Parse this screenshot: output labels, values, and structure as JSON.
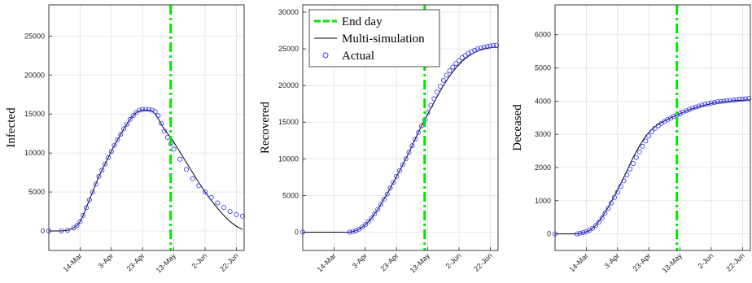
{
  "colors": {
    "end_day": "#00e600",
    "simulation": "#000000",
    "actual": "#3333ff",
    "grid": "#e0e0e0"
  },
  "chart_data": [
    {
      "type": "line",
      "ylabel": "Infected",
      "ylim": [
        -2500,
        29000
      ],
      "yticks": [
        0,
        5000,
        10000,
        15000,
        20000,
        25000
      ],
      "x_range": [
        0,
        125
      ],
      "x_ticks": [
        {
          "x": 20,
          "label": "14-Mar"
        },
        {
          "x": 40,
          "label": "3-Apr"
        },
        {
          "x": 60,
          "label": "23-Apr"
        },
        {
          "x": 80,
          "label": "13-May"
        },
        {
          "x": 100,
          "label": "2-Jun"
        },
        {
          "x": 120,
          "label": "22-Jun"
        }
      ],
      "end_day": 78,
      "grid": true,
      "legend": null,
      "simulation": {
        "name": "Multi-simulation",
        "x": [
          0,
          8,
          12,
          16,
          18,
          20,
          22,
          24,
          26,
          28,
          30,
          32,
          34,
          36,
          38,
          40,
          42,
          44,
          46,
          48,
          50,
          52,
          54,
          56,
          58,
          60,
          62,
          64,
          66,
          68,
          70,
          72,
          74,
          76,
          78,
          80,
          84,
          88,
          92,
          96,
          100,
          104,
          108,
          112,
          116,
          120,
          124
        ],
        "y": [
          0,
          0,
          100,
          400,
          700,
          1200,
          2000,
          3000,
          4000,
          5000,
          6000,
          7000,
          7800,
          8600,
          9400,
          10200,
          11000,
          11700,
          12400,
          13100,
          13700,
          14300,
          14800,
          15200,
          15400,
          15500,
          15500,
          15500,
          15400,
          15000,
          14400,
          13700,
          13000,
          12500,
          12000,
          11400,
          10100,
          8800,
          7500,
          6200,
          5000,
          3900,
          2900,
          2000,
          1200,
          600,
          200
        ]
      },
      "actual": {
        "name": "Actual",
        "x": [
          0,
          8,
          12,
          16,
          18,
          20,
          22,
          24,
          26,
          28,
          30,
          32,
          34,
          36,
          38,
          40,
          42,
          44,
          46,
          48,
          50,
          52,
          54,
          56,
          58,
          60,
          62,
          64,
          66,
          68,
          70,
          72,
          74,
          76,
          78,
          80,
          84,
          88,
          92,
          96,
          100,
          104,
          108,
          112,
          116,
          120,
          124
        ],
        "y": [
          0,
          0,
          100,
          400,
          700,
          1200,
          2000,
          3000,
          4000,
          5000,
          6000,
          7000,
          7800,
          8600,
          9400,
          10200,
          11000,
          11700,
          12400,
          13100,
          13700,
          14300,
          14800,
          15200,
          15500,
          15600,
          15600,
          15600,
          15500,
          15300,
          14800,
          13800,
          12800,
          12000,
          11200,
          10500,
          9200,
          7900,
          6700,
          5800,
          5000,
          4300,
          3600,
          3000,
          2500,
          2100,
          1900
        ]
      }
    },
    {
      "type": "line",
      "ylabel": "Recovered",
      "ylim": [
        -2500,
        31000
      ],
      "yticks": [
        0,
        5000,
        10000,
        15000,
        20000,
        25000,
        30000
      ],
      "x_range": [
        0,
        125
      ],
      "x_ticks": [
        {
          "x": 20,
          "label": "14-Mar"
        },
        {
          "x": 40,
          "label": "3-Apr"
        },
        {
          "x": 60,
          "label": "23-Apr"
        },
        {
          "x": 80,
          "label": "13-May"
        },
        {
          "x": 100,
          "label": "2-Jun"
        },
        {
          "x": 120,
          "label": "22-Jun"
        }
      ],
      "end_day": 78,
      "grid": true,
      "legend": {
        "placement": "top-left",
        "entries": [
          {
            "label": "End day",
            "style": "dash"
          },
          {
            "label": "Multi-simulation",
            "style": "line"
          },
          {
            "label": "Actual",
            "style": "marker"
          }
        ]
      },
      "simulation": {
        "name": "Multi-simulation",
        "x": [
          0,
          30,
          32,
          34,
          36,
          38,
          40,
          42,
          44,
          46,
          48,
          50,
          52,
          54,
          56,
          58,
          60,
          62,
          64,
          66,
          68,
          70,
          72,
          74,
          76,
          78,
          82,
          86,
          90,
          94,
          98,
          102,
          106,
          110,
          114,
          118,
          122,
          125
        ],
        "y": [
          0,
          0,
          100,
          200,
          400,
          700,
          1000,
          1400,
          1900,
          2500,
          3100,
          3800,
          4500,
          5200,
          6000,
          6800,
          7600,
          8400,
          9200,
          10000,
          10900,
          11800,
          12700,
          13600,
          14500,
          15300,
          16900,
          18500,
          20000,
          21300,
          22400,
          23300,
          24000,
          24500,
          24900,
          25100,
          25200,
          25200
        ]
      },
      "actual": {
        "name": "Actual",
        "x": [
          0,
          30,
          32,
          34,
          36,
          38,
          40,
          42,
          44,
          46,
          48,
          50,
          52,
          54,
          56,
          58,
          60,
          62,
          64,
          66,
          68,
          70,
          72,
          74,
          76,
          78,
          80,
          82,
          84,
          86,
          88,
          90,
          92,
          94,
          96,
          98,
          100,
          102,
          104,
          106,
          108,
          110,
          112,
          114,
          116,
          118,
          120,
          122,
          124
        ],
        "y": [
          0,
          0,
          100,
          200,
          400,
          700,
          1000,
          1400,
          1900,
          2500,
          3100,
          3800,
          4500,
          5200,
          6000,
          6800,
          7600,
          8400,
          9200,
          10000,
          10900,
          11800,
          12700,
          13600,
          14500,
          15300,
          16300,
          17300,
          18200,
          19100,
          19900,
          20700,
          21400,
          22000,
          22500,
          23000,
          23400,
          23800,
          24100,
          24400,
          24600,
          24800,
          25000,
          25100,
          25200,
          25300,
          25400,
          25450,
          25500
        ]
      }
    },
    {
      "type": "line",
      "ylabel": "Deceased",
      "ylim": [
        -500,
        6900
      ],
      "yticks": [
        0,
        1000,
        2000,
        3000,
        4000,
        5000,
        6000
      ],
      "x_range": [
        0,
        125
      ],
      "x_ticks": [
        {
          "x": 20,
          "label": "14-Mar"
        },
        {
          "x": 40,
          "label": "3-Apr"
        },
        {
          "x": 60,
          "label": "23-Apr"
        },
        {
          "x": 80,
          "label": "13-May"
        },
        {
          "x": 100,
          "label": "2-Jun"
        },
        {
          "x": 120,
          "label": "22-Jun"
        }
      ],
      "end_day": 78,
      "grid": true,
      "legend": null,
      "simulation": {
        "name": "Multi-simulation",
        "x": [
          0,
          14,
          18,
          22,
          26,
          30,
          34,
          38,
          42,
          46,
          50,
          54,
          58,
          62,
          66,
          70,
          74,
          78,
          82,
          86,
          90,
          94,
          98,
          102,
          106,
          110,
          114,
          118,
          122,
          125
        ],
        "y": [
          0,
          0,
          30,
          100,
          250,
          500,
          800,
          1150,
          1500,
          1900,
          2300,
          2650,
          2950,
          3150,
          3300,
          3400,
          3500,
          3580,
          3660,
          3740,
          3800,
          3860,
          3900,
          3940,
          3970,
          3990,
          4010,
          4020,
          4030,
          4040
        ]
      },
      "actual": {
        "name": "Actual",
        "x": [
          0,
          14,
          16,
          18,
          20,
          22,
          24,
          26,
          28,
          30,
          32,
          34,
          36,
          38,
          40,
          42,
          44,
          46,
          48,
          50,
          52,
          54,
          56,
          58,
          60,
          62,
          64,
          66,
          68,
          70,
          72,
          74,
          76,
          78,
          80,
          82,
          84,
          86,
          88,
          90,
          92,
          94,
          96,
          98,
          100,
          102,
          104,
          106,
          108,
          110,
          112,
          114,
          116,
          118,
          120,
          122,
          124
        ],
        "y": [
          0,
          0,
          20,
          40,
          70,
          110,
          170,
          250,
          350,
          480,
          620,
          770,
          930,
          1100,
          1260,
          1430,
          1600,
          1780,
          1950,
          2120,
          2300,
          2470,
          2640,
          2800,
          2950,
          3080,
          3180,
          3260,
          3330,
          3390,
          3440,
          3490,
          3540,
          3580,
          3620,
          3670,
          3710,
          3750,
          3790,
          3820,
          3850,
          3880,
          3900,
          3920,
          3940,
          3960,
          3980,
          3990,
          4000,
          4010,
          4020,
          4030,
          4040,
          4050,
          4060,
          4070,
          4080
        ]
      }
    }
  ]
}
